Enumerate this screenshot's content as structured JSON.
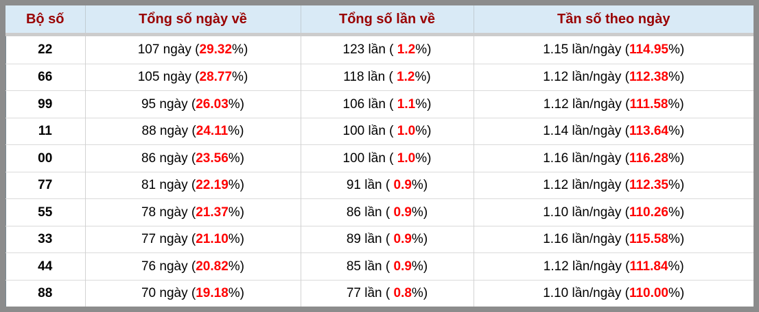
{
  "colors": {
    "frame_border": "#8c8c8c",
    "header_bg": "#d9eaf6",
    "header_text": "#990000",
    "highlight_red": "#ff0000",
    "body_text": "#000000",
    "grid_line": "#d2d2d2"
  },
  "table": {
    "columns": [
      "Bộ số",
      "Tổng số ngày về",
      "Tổng số lần về",
      "Tần số theo ngày"
    ],
    "rows": [
      {
        "pair": "22",
        "days": {
          "pre": "107 ngày (",
          "red": "29.32",
          "post": "%)"
        },
        "times": {
          "pre": "123 lần ( ",
          "red": "1.2",
          "post": "%)"
        },
        "freq": {
          "pre": "1.15 lần/ngày (",
          "red": "114.95",
          "post": "%)"
        }
      },
      {
        "pair": "66",
        "days": {
          "pre": "105 ngày (",
          "red": "28.77",
          "post": "%)"
        },
        "times": {
          "pre": "118 lần ( ",
          "red": "1.2",
          "post": "%)"
        },
        "freq": {
          "pre": "1.12 lần/ngày (",
          "red": "112.38",
          "post": "%)"
        }
      },
      {
        "pair": "99",
        "days": {
          "pre": "95 ngày (",
          "red": "26.03",
          "post": "%)"
        },
        "times": {
          "pre": "106 lần ( ",
          "red": "1.1",
          "post": "%)"
        },
        "freq": {
          "pre": "1.12 lần/ngày (",
          "red": "111.58",
          "post": "%)"
        }
      },
      {
        "pair": "11",
        "days": {
          "pre": "88 ngày (",
          "red": "24.11",
          "post": "%)"
        },
        "times": {
          "pre": "100 lần ( ",
          "red": "1.0",
          "post": "%)"
        },
        "freq": {
          "pre": "1.14 lần/ngày (",
          "red": "113.64",
          "post": "%)"
        }
      },
      {
        "pair": "00",
        "days": {
          "pre": "86 ngày (",
          "red": "23.56",
          "post": "%)"
        },
        "times": {
          "pre": "100 lần ( ",
          "red": "1.0",
          "post": "%)"
        },
        "freq": {
          "pre": "1.16 lần/ngày (",
          "red": "116.28",
          "post": "%)"
        }
      },
      {
        "pair": "77",
        "days": {
          "pre": "81 ngày (",
          "red": "22.19",
          "post": "%)"
        },
        "times": {
          "pre": "91 lần ( ",
          "red": "0.9",
          "post": "%)"
        },
        "freq": {
          "pre": "1.12 lần/ngày (",
          "red": "112.35",
          "post": "%)"
        }
      },
      {
        "pair": "55",
        "days": {
          "pre": "78 ngày (",
          "red": "21.37",
          "post": "%)"
        },
        "times": {
          "pre": "86 lần ( ",
          "red": "0.9",
          "post": "%)"
        },
        "freq": {
          "pre": "1.10 lần/ngày (",
          "red": "110.26",
          "post": "%)"
        }
      },
      {
        "pair": "33",
        "days": {
          "pre": "77 ngày (",
          "red": "21.10",
          "post": "%)"
        },
        "times": {
          "pre": "89 lần ( ",
          "red": "0.9",
          "post": "%)"
        },
        "freq": {
          "pre": "1.16 lần/ngày (",
          "red": "115.58",
          "post": "%)"
        }
      },
      {
        "pair": "44",
        "days": {
          "pre": "76 ngày (",
          "red": "20.82",
          "post": "%)"
        },
        "times": {
          "pre": "85 lần ( ",
          "red": "0.9",
          "post": "%)"
        },
        "freq": {
          "pre": "1.12 lần/ngày (",
          "red": "111.84",
          "post": "%)"
        }
      },
      {
        "pair": "88",
        "days": {
          "pre": "70 ngày (",
          "red": "19.18",
          "post": "%)"
        },
        "times": {
          "pre": "77 lần ( ",
          "red": "0.8",
          "post": "%)"
        },
        "freq": {
          "pre": "1.10 lần/ngày (",
          "red": "110.00",
          "post": "%)"
        }
      }
    ]
  },
  "chart_data": {
    "type": "table",
    "columns": [
      "Bộ số",
      "Tổng số ngày về",
      "Tổng số lần về",
      "Tần số theo ngày"
    ],
    "rows": [
      [
        "22",
        "107 ngày (29.32%)",
        "123 lần ( 1.2%)",
        "1.15 lần/ngày (114.95%)"
      ],
      [
        "66",
        "105 ngày (28.77%)",
        "118 lần ( 1.2%)",
        "1.12 lần/ngày (112.38%)"
      ],
      [
        "99",
        "95 ngày (26.03%)",
        "106 lần ( 1.1%)",
        "1.12 lần/ngày (111.58%)"
      ],
      [
        "11",
        "88 ngày (24.11%)",
        "100 lần ( 1.0%)",
        "1.14 lần/ngày (113.64%)"
      ],
      [
        "00",
        "86 ngày (23.56%)",
        "100 lần ( 1.0%)",
        "1.16 lần/ngày (116.28%)"
      ],
      [
        "77",
        "81 ngày (22.19%)",
        "91 lần ( 0.9%)",
        "1.12 lần/ngày (112.35%)"
      ],
      [
        "55",
        "78 ngày (21.37%)",
        "86 lần ( 0.9%)",
        "1.10 lần/ngày (110.26%)"
      ],
      [
        "33",
        "77 ngày (21.10%)",
        "89 lần ( 0.9%)",
        "1.16 lần/ngày (115.58%)"
      ],
      [
        "44",
        "76 ngày (20.82%)",
        "85 lần ( 0.9%)",
        "1.12 lần/ngày (111.84%)"
      ],
      [
        "88",
        "70 ngày (19.18%)",
        "77 lần ( 0.8%)",
        "1.10 lần/ngày (110.00%)"
      ]
    ]
  }
}
